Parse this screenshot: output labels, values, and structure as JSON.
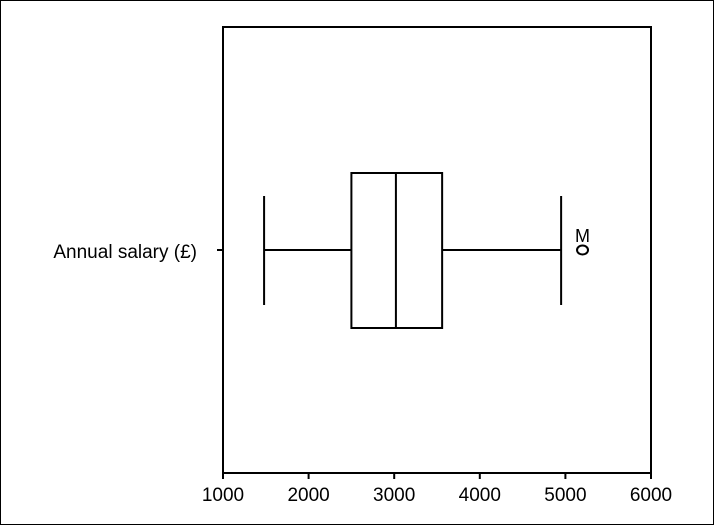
{
  "chart_data": {
    "type": "boxplot",
    "title": "",
    "xlabel": "",
    "ylabel": "",
    "xlim": [
      1000,
      6000
    ],
    "xticks": [
      1000,
      2000,
      3000,
      4000,
      5000,
      6000
    ],
    "grid": false,
    "category": "Annual salary (£)",
    "box": {
      "whisker_low": 1480,
      "q1": 2500,
      "median": 3020,
      "q3": 3560,
      "whisker_high": 4950
    },
    "outliers": [
      {
        "value": 5200,
        "label": "M"
      }
    ],
    "colors": {
      "stroke": "#000000",
      "fill": "#ffffff"
    }
  }
}
